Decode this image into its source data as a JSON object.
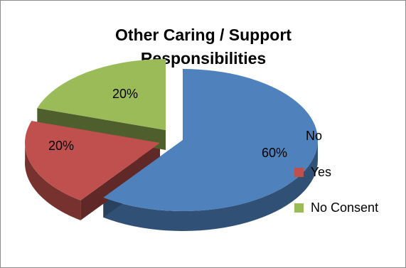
{
  "chart_data": {
    "type": "pie",
    "title": "Other Caring / Support Responsibilities",
    "series": [
      {
        "name": "No",
        "value": 60,
        "label": "60%",
        "color": "#4f81bd"
      },
      {
        "name": "Yes",
        "value": 20,
        "label": "20%",
        "color": "#c0504d"
      },
      {
        "name": "No Consent",
        "value": 20,
        "label": "20%",
        "color": "#9bbb59"
      }
    ],
    "style": "3d-exploded",
    "legend": "right"
  }
}
